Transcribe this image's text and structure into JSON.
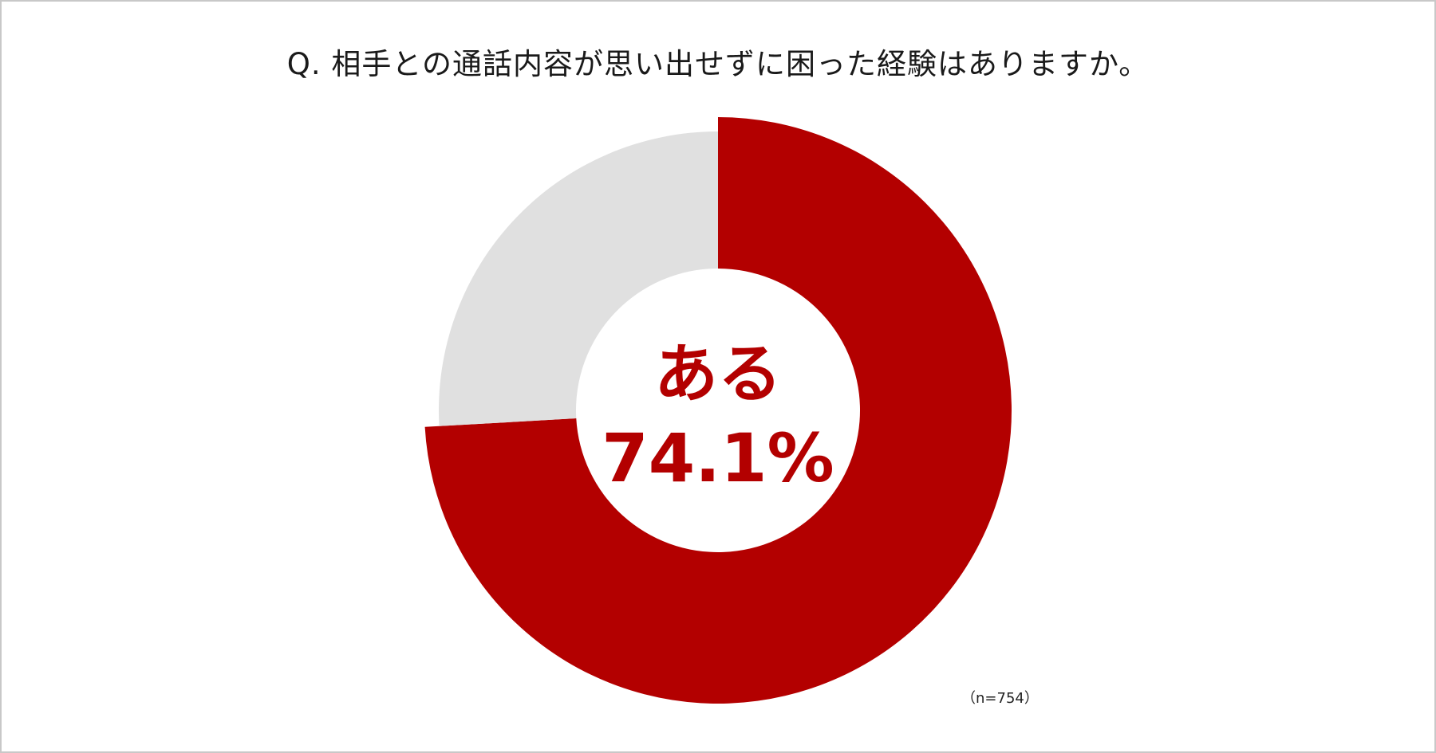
{
  "title": "Q. 相手との通話内容が思い出せずに困った経験はありますか。",
  "note": "（n=754）",
  "chart_data": {
    "type": "pie",
    "donut": true,
    "categories": [
      "ある",
      ""
    ],
    "values": [
      74.1,
      25.9
    ],
    "center_category": "ある",
    "center_value": "74.1%",
    "colors": [
      "#b30000",
      "#e0e0e0"
    ]
  }
}
